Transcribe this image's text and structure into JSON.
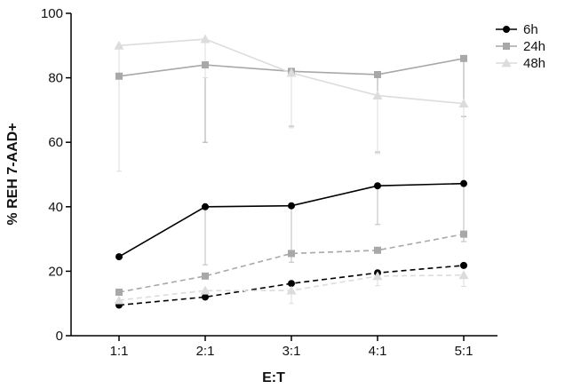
{
  "chart_data": {
    "type": "line",
    "title": "",
    "xlabel": "E:T",
    "ylabel": "% REH 7-AAD+",
    "categories": [
      "1:1",
      "2:1",
      "3:1",
      "4:1",
      "5:1"
    ],
    "ylim": [
      0,
      100
    ],
    "yticks": [
      0,
      20,
      40,
      60,
      80,
      100
    ],
    "grid": false,
    "legend_position": "top-right",
    "legend": [
      {
        "name": "6h",
        "marker": "circle",
        "color": "#000000"
      },
      {
        "name": "24h",
        "marker": "square",
        "color": "#a8a8a8"
      },
      {
        "name": "48h",
        "marker": "triangle",
        "color": "#dcdcdc"
      }
    ],
    "series": [
      {
        "legend": "6h",
        "line": "solid",
        "marker": "circle",
        "color": "#000000",
        "values": [
          24.5,
          40,
          40.3,
          46.5,
          47.2
        ],
        "errors": [
          null,
          18,
          17.5,
          12,
          18
        ]
      },
      {
        "legend": "24h",
        "line": "solid",
        "marker": "square",
        "color": "#a8a8a8",
        "values": [
          80.5,
          84,
          82,
          81,
          86
        ],
        "errors": [
          null,
          24,
          17,
          24,
          18
        ]
      },
      {
        "legend": "48h",
        "line": "solid",
        "marker": "triangle",
        "color": "#dcdcdc",
        "values": [
          90,
          92,
          81.5,
          74.5,
          72
        ],
        "errors": [
          39,
          12,
          17,
          18,
          25
        ]
      },
      {
        "legend": "6h",
        "line": "dashed",
        "marker": "circle",
        "color": "#000000",
        "values": [
          9.5,
          12,
          16.2,
          19.5,
          21.8
        ],
        "errors": [
          null,
          null,
          null,
          null,
          null
        ]
      },
      {
        "legend": "24h",
        "line": "dashed",
        "marker": "square",
        "color": "#a8a8a8",
        "values": [
          13.5,
          18.5,
          25.5,
          26.5,
          31.5
        ],
        "errors": [
          null,
          null,
          null,
          null,
          null
        ]
      },
      {
        "legend": "48h",
        "line": "dashed",
        "marker": "triangle",
        "color": "#dcdcdc",
        "values": [
          11,
          14,
          14,
          18.5,
          18.8
        ],
        "errors": [
          null,
          null,
          4,
          3,
          3.5
        ]
      }
    ]
  }
}
